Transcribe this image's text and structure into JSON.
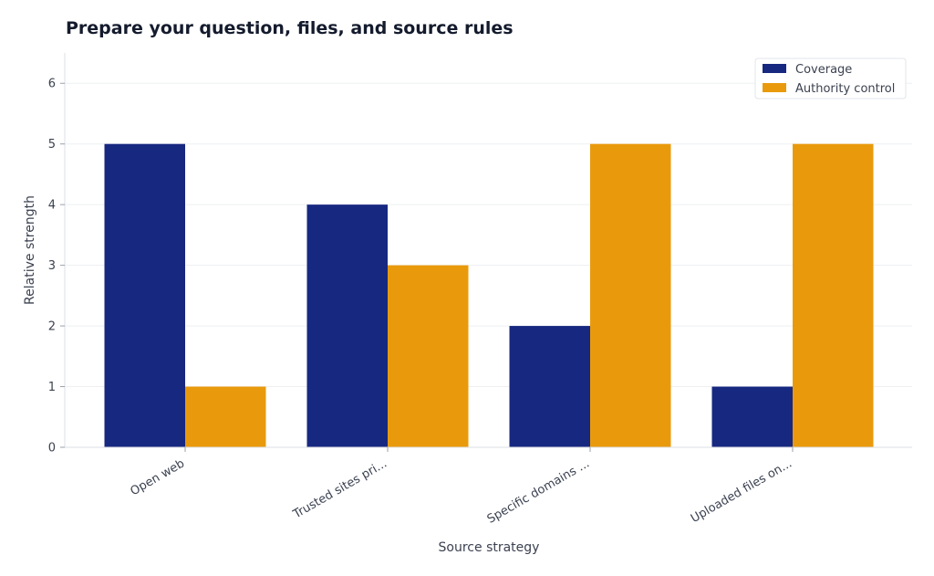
{
  "chart_data": {
    "type": "bar",
    "title": "Prepare your question, files, and source rules",
    "xlabel": "Source strategy",
    "ylabel": "Relative strength",
    "categories": [
      "Open web",
      "Trusted sites pri...",
      "Specific domains ...",
      "Uploaded files on..."
    ],
    "series": [
      {
        "name": "Coverage",
        "values": [
          5,
          4,
          2,
          1
        ],
        "color": "#172880"
      },
      {
        "name": "Authority control",
        "values": [
          1,
          3,
          5,
          5
        ],
        "color": "#e99a0c"
      }
    ],
    "ylim": [
      0,
      6.5
    ],
    "yticks": [
      0,
      1,
      2,
      3,
      4,
      5,
      6
    ],
    "grid": true,
    "legend": "top-right"
  }
}
